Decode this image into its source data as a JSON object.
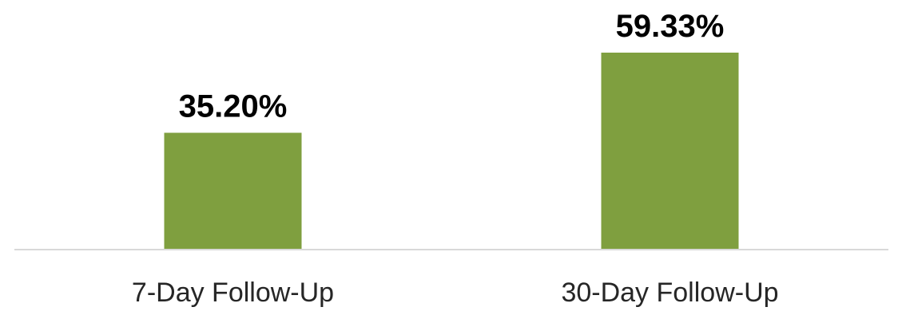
{
  "chart_data": {
    "type": "bar",
    "title": "",
    "xlabel": "",
    "ylabel": "",
    "categories": [
      "7-Day Follow-Up",
      "30-Day Follow-Up"
    ],
    "values": [
      35.2,
      59.33
    ],
    "data_labels": [
      "35.20%",
      "59.33%"
    ],
    "ylim": [
      0,
      65
    ],
    "grid": false,
    "legend": "none",
    "colors": {
      "bar": "#7F9F3F",
      "baseline": "#D9D9D9"
    }
  }
}
